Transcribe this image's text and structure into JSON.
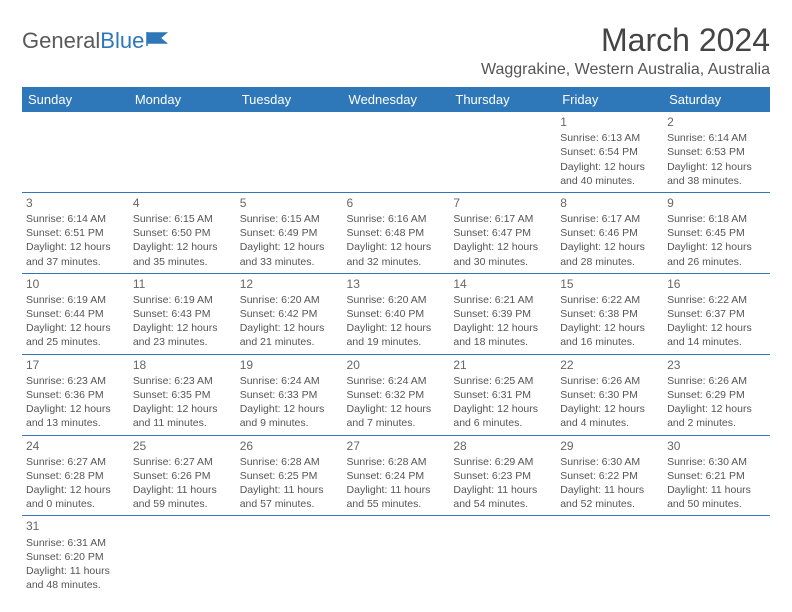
{
  "logo": {
    "text1": "General",
    "text2": "Blue"
  },
  "title": "March 2024",
  "subtitle": "Waggrakine, Western Australia, Australia",
  "colors": {
    "header_bg": "#2e77b8",
    "header_text": "#ffffff",
    "cell_border": "#2e77b8",
    "body_text": "#555555",
    "title_text": "#444444"
  },
  "typography": {
    "title_fontsize": 32,
    "subtitle_fontsize": 16,
    "th_fontsize": 13,
    "cell_fontsize": 10.5,
    "daynum_fontsize": 12
  },
  "weekdays": [
    "Sunday",
    "Monday",
    "Tuesday",
    "Wednesday",
    "Thursday",
    "Friday",
    "Saturday"
  ],
  "weeks": [
    [
      null,
      null,
      null,
      null,
      null,
      {
        "n": "1",
        "sr": "Sunrise: 6:13 AM",
        "ss": "Sunset: 6:54 PM",
        "dl": "Daylight: 12 hours and 40 minutes."
      },
      {
        "n": "2",
        "sr": "Sunrise: 6:14 AM",
        "ss": "Sunset: 6:53 PM",
        "dl": "Daylight: 12 hours and 38 minutes."
      }
    ],
    [
      {
        "n": "3",
        "sr": "Sunrise: 6:14 AM",
        "ss": "Sunset: 6:51 PM",
        "dl": "Daylight: 12 hours and 37 minutes."
      },
      {
        "n": "4",
        "sr": "Sunrise: 6:15 AM",
        "ss": "Sunset: 6:50 PM",
        "dl": "Daylight: 12 hours and 35 minutes."
      },
      {
        "n": "5",
        "sr": "Sunrise: 6:15 AM",
        "ss": "Sunset: 6:49 PM",
        "dl": "Daylight: 12 hours and 33 minutes."
      },
      {
        "n": "6",
        "sr": "Sunrise: 6:16 AM",
        "ss": "Sunset: 6:48 PM",
        "dl": "Daylight: 12 hours and 32 minutes."
      },
      {
        "n": "7",
        "sr": "Sunrise: 6:17 AM",
        "ss": "Sunset: 6:47 PM",
        "dl": "Daylight: 12 hours and 30 minutes."
      },
      {
        "n": "8",
        "sr": "Sunrise: 6:17 AM",
        "ss": "Sunset: 6:46 PM",
        "dl": "Daylight: 12 hours and 28 minutes."
      },
      {
        "n": "9",
        "sr": "Sunrise: 6:18 AM",
        "ss": "Sunset: 6:45 PM",
        "dl": "Daylight: 12 hours and 26 minutes."
      }
    ],
    [
      {
        "n": "10",
        "sr": "Sunrise: 6:19 AM",
        "ss": "Sunset: 6:44 PM",
        "dl": "Daylight: 12 hours and 25 minutes."
      },
      {
        "n": "11",
        "sr": "Sunrise: 6:19 AM",
        "ss": "Sunset: 6:43 PM",
        "dl": "Daylight: 12 hours and 23 minutes."
      },
      {
        "n": "12",
        "sr": "Sunrise: 6:20 AM",
        "ss": "Sunset: 6:42 PM",
        "dl": "Daylight: 12 hours and 21 minutes."
      },
      {
        "n": "13",
        "sr": "Sunrise: 6:20 AM",
        "ss": "Sunset: 6:40 PM",
        "dl": "Daylight: 12 hours and 19 minutes."
      },
      {
        "n": "14",
        "sr": "Sunrise: 6:21 AM",
        "ss": "Sunset: 6:39 PM",
        "dl": "Daylight: 12 hours and 18 minutes."
      },
      {
        "n": "15",
        "sr": "Sunrise: 6:22 AM",
        "ss": "Sunset: 6:38 PM",
        "dl": "Daylight: 12 hours and 16 minutes."
      },
      {
        "n": "16",
        "sr": "Sunrise: 6:22 AM",
        "ss": "Sunset: 6:37 PM",
        "dl": "Daylight: 12 hours and 14 minutes."
      }
    ],
    [
      {
        "n": "17",
        "sr": "Sunrise: 6:23 AM",
        "ss": "Sunset: 6:36 PM",
        "dl": "Daylight: 12 hours and 13 minutes."
      },
      {
        "n": "18",
        "sr": "Sunrise: 6:23 AM",
        "ss": "Sunset: 6:35 PM",
        "dl": "Daylight: 12 hours and 11 minutes."
      },
      {
        "n": "19",
        "sr": "Sunrise: 6:24 AM",
        "ss": "Sunset: 6:33 PM",
        "dl": "Daylight: 12 hours and 9 minutes."
      },
      {
        "n": "20",
        "sr": "Sunrise: 6:24 AM",
        "ss": "Sunset: 6:32 PM",
        "dl": "Daylight: 12 hours and 7 minutes."
      },
      {
        "n": "21",
        "sr": "Sunrise: 6:25 AM",
        "ss": "Sunset: 6:31 PM",
        "dl": "Daylight: 12 hours and 6 minutes."
      },
      {
        "n": "22",
        "sr": "Sunrise: 6:26 AM",
        "ss": "Sunset: 6:30 PM",
        "dl": "Daylight: 12 hours and 4 minutes."
      },
      {
        "n": "23",
        "sr": "Sunrise: 6:26 AM",
        "ss": "Sunset: 6:29 PM",
        "dl": "Daylight: 12 hours and 2 minutes."
      }
    ],
    [
      {
        "n": "24",
        "sr": "Sunrise: 6:27 AM",
        "ss": "Sunset: 6:28 PM",
        "dl": "Daylight: 12 hours and 0 minutes."
      },
      {
        "n": "25",
        "sr": "Sunrise: 6:27 AM",
        "ss": "Sunset: 6:26 PM",
        "dl": "Daylight: 11 hours and 59 minutes."
      },
      {
        "n": "26",
        "sr": "Sunrise: 6:28 AM",
        "ss": "Sunset: 6:25 PM",
        "dl": "Daylight: 11 hours and 57 minutes."
      },
      {
        "n": "27",
        "sr": "Sunrise: 6:28 AM",
        "ss": "Sunset: 6:24 PM",
        "dl": "Daylight: 11 hours and 55 minutes."
      },
      {
        "n": "28",
        "sr": "Sunrise: 6:29 AM",
        "ss": "Sunset: 6:23 PM",
        "dl": "Daylight: 11 hours and 54 minutes."
      },
      {
        "n": "29",
        "sr": "Sunrise: 6:30 AM",
        "ss": "Sunset: 6:22 PM",
        "dl": "Daylight: 11 hours and 52 minutes."
      },
      {
        "n": "30",
        "sr": "Sunrise: 6:30 AM",
        "ss": "Sunset: 6:21 PM",
        "dl": "Daylight: 11 hours and 50 minutes."
      }
    ],
    [
      {
        "n": "31",
        "sr": "Sunrise: 6:31 AM",
        "ss": "Sunset: 6:20 PM",
        "dl": "Daylight: 11 hours and 48 minutes."
      },
      null,
      null,
      null,
      null,
      null,
      null
    ]
  ]
}
